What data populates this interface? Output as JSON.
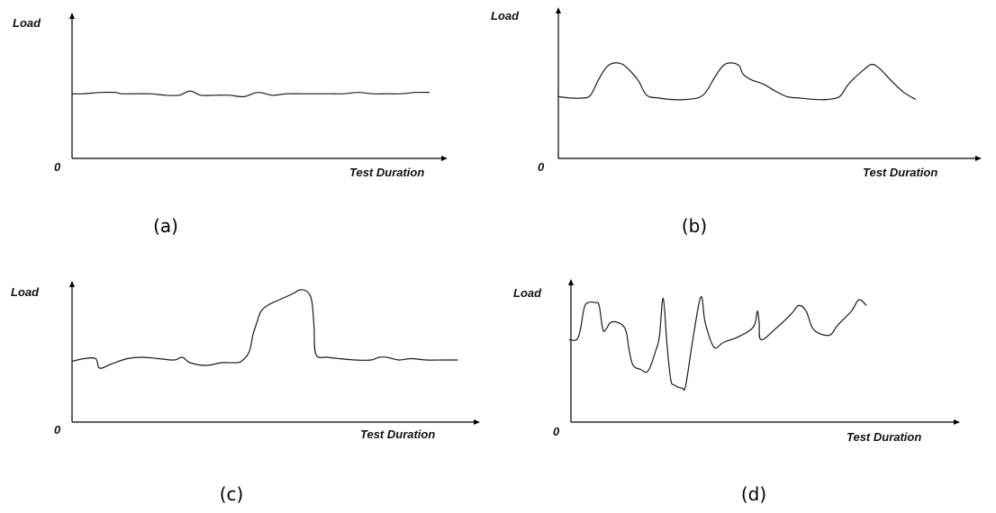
{
  "chart_data": [
    {
      "type": "line",
      "caption": "(a)",
      "ylabel": "Load",
      "xlabel": "Test Duration",
      "origin_label": "0",
      "x": [
        0,
        3,
        8,
        12,
        14,
        18,
        22,
        26,
        30,
        33,
        36,
        40,
        44,
        48,
        52,
        56,
        60,
        64,
        68,
        72,
        76,
        80,
        84,
        88,
        92,
        96,
        100
      ],
      "y": [
        0.46,
        0.46,
        0.47,
        0.47,
        0.46,
        0.46,
        0.46,
        0.45,
        0.45,
        0.48,
        0.45,
        0.45,
        0.45,
        0.44,
        0.47,
        0.45,
        0.46,
        0.46,
        0.46,
        0.46,
        0.46,
        0.47,
        0.46,
        0.46,
        0.46,
        0.47,
        0.47
      ]
    },
    {
      "type": "line",
      "caption": "(b)",
      "ylabel": "Load",
      "xlabel": "Test Duration",
      "origin_label": "0",
      "x": [
        0,
        3,
        6,
        8,
        10,
        12,
        14,
        16,
        18,
        20,
        22,
        25,
        28,
        32,
        36,
        39,
        41,
        43,
        45,
        46,
        48,
        51,
        54,
        57,
        60,
        64,
        67,
        70,
        72,
        74,
        76,
        78,
        80,
        83,
        86,
        89
      ],
      "y": [
        0.44,
        0.43,
        0.43,
        0.45,
        0.56,
        0.65,
        0.68,
        0.67,
        0.62,
        0.55,
        0.45,
        0.43,
        0.42,
        0.42,
        0.45,
        0.58,
        0.66,
        0.68,
        0.66,
        0.6,
        0.56,
        0.53,
        0.48,
        0.44,
        0.43,
        0.42,
        0.42,
        0.44,
        0.52,
        0.58,
        0.63,
        0.67,
        0.64,
        0.55,
        0.47,
        0.42
      ]
    },
    {
      "type": "line",
      "caption": "(c)",
      "ylabel": "Load",
      "xlabel": "Test Duration",
      "origin_label": "0",
      "x": [
        0,
        3,
        6,
        7,
        10,
        14,
        18,
        22,
        26,
        28,
        30,
        34,
        38,
        41,
        43,
        45,
        46,
        47,
        48,
        50,
        53,
        56,
        58,
        60,
        61,
        61.5,
        62,
        65,
        68,
        72,
        76,
        78,
        80,
        83,
        86,
        90,
        94,
        98
      ],
      "y": [
        0.45,
        0.47,
        0.47,
        0.4,
        0.43,
        0.47,
        0.48,
        0.47,
        0.46,
        0.48,
        0.44,
        0.42,
        0.44,
        0.44,
        0.45,
        0.52,
        0.65,
        0.74,
        0.82,
        0.87,
        0.91,
        0.95,
        0.98,
        0.96,
        0.88,
        0.7,
        0.5,
        0.48,
        0.47,
        0.46,
        0.46,
        0.48,
        0.48,
        0.46,
        0.47,
        0.46,
        0.46,
        0.46
      ]
    },
    {
      "type": "line",
      "caption": "(d)",
      "ylabel": "Load",
      "xlabel": "Test Duration",
      "origin_label": "0",
      "x": [
        5,
        7,
        8,
        9,
        10,
        12,
        13,
        14,
        15,
        16,
        18,
        20,
        21,
        22,
        24,
        26,
        28,
        29,
        30,
        31,
        32,
        33,
        35,
        36,
        38,
        40,
        41,
        42,
        43,
        44,
        46,
        50,
        54,
        55,
        55.5,
        56,
        60,
        64,
        66,
        68,
        70,
        74,
        76,
        77,
        80,
        82,
        84
      ],
      "y": [
        0.58,
        0.58,
        0.65,
        0.8,
        0.84,
        0.84,
        0.82,
        0.65,
        0.66,
        0.7,
        0.7,
        0.65,
        0.5,
        0.4,
        0.37,
        0.36,
        0.5,
        0.6,
        0.87,
        0.55,
        0.3,
        0.26,
        0.24,
        0.26,
        0.6,
        0.88,
        0.72,
        0.62,
        0.55,
        0.52,
        0.56,
        0.6,
        0.67,
        0.78,
        0.7,
        0.58,
        0.66,
        0.76,
        0.82,
        0.78,
        0.65,
        0.61,
        0.67,
        0.7,
        0.78,
        0.86,
        0.82
      ]
    }
  ]
}
